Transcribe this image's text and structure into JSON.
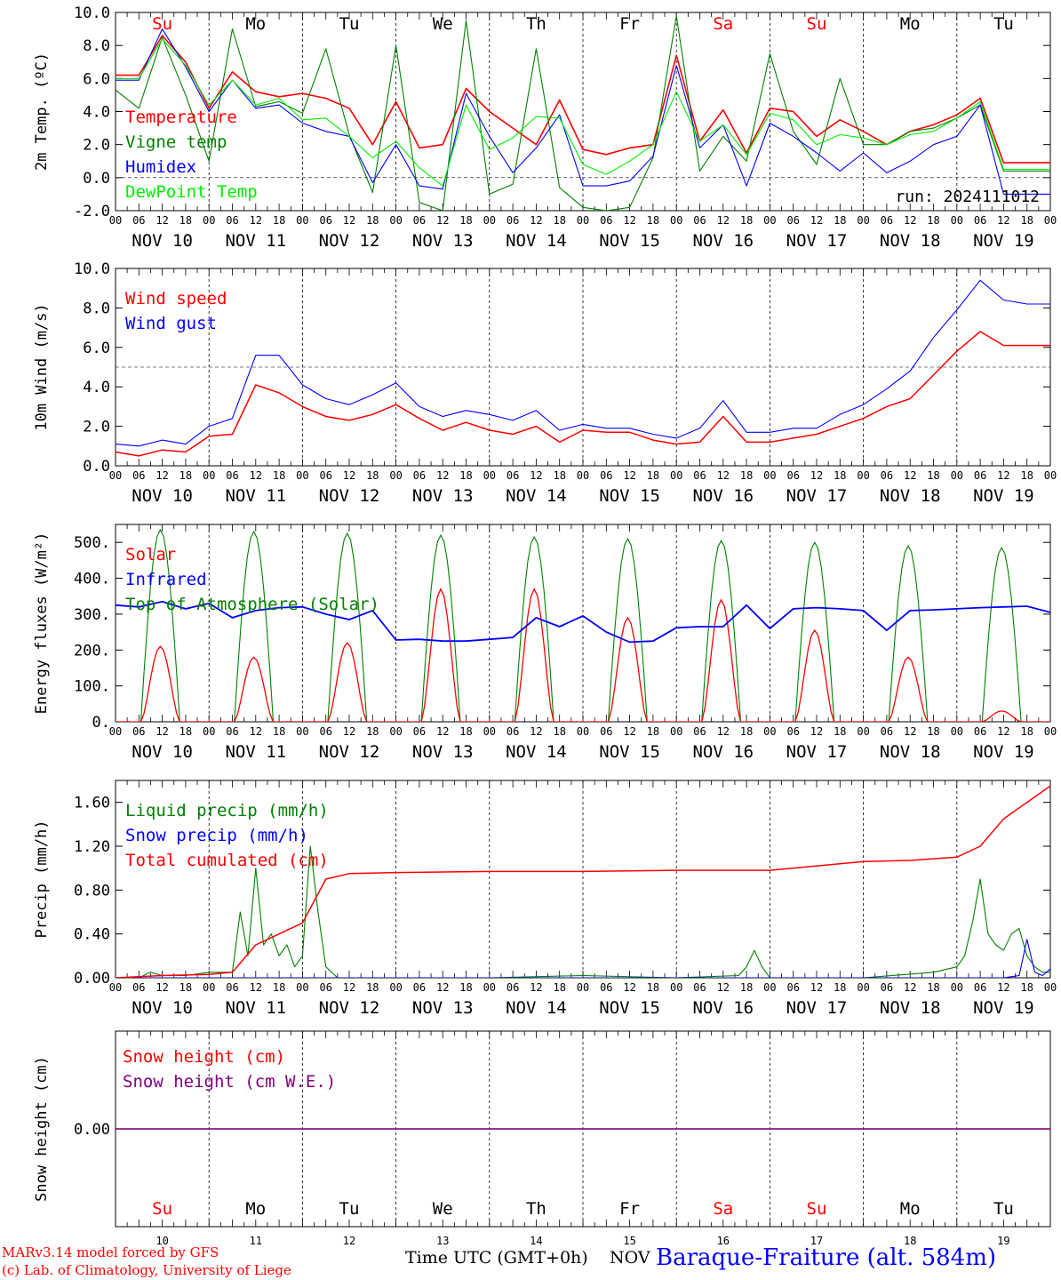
{
  "run_label": "run: 2024111012",
  "days": {
    "dates": [
      "NOV 10",
      "NOV 11",
      "NOV 12",
      "NOV 13",
      "NOV 14",
      "NOV 15",
      "NOV 16",
      "NOV 17",
      "NOV 18",
      "NOV 19"
    ],
    "weekdays": [
      "Su",
      "Mo",
      "Tu",
      "We",
      "Th",
      "Fr",
      "Sa",
      "Su",
      "Mo",
      "Tu"
    ],
    "weekday_colors": [
      "#ff0000",
      "#000000",
      "#000000",
      "#000000",
      "#000000",
      "#000000",
      "#ff0000",
      "#ff0000",
      "#000000",
      "#000000"
    ],
    "day_numbers": [
      "10",
      "11",
      "12",
      "13",
      "14",
      "15",
      "16",
      "17",
      "18",
      "19"
    ],
    "hour_ticks": [
      "00",
      "06",
      "12",
      "18"
    ],
    "hour_end": "00"
  },
  "footer": {
    "credit_line1": "MARv3.14 model forced by GFS",
    "credit_line2": "(c) Lab. of Climatology, University of Liege",
    "time_label": "Time UTC (GMT+0h)",
    "month_label": "NOV",
    "station": "Baraque-Fraiture (alt. 584m)"
  },
  "chart_data": [
    {
      "id": "temp",
      "type": "line",
      "ylabel": "2m Temp. (ºC)",
      "ylim": [
        -2,
        10
      ],
      "yticks": [
        "-2.0",
        "0.0",
        "2.0",
        "4.0",
        "6.0",
        "8.0",
        "10.0"
      ],
      "ytick_values": [
        -2,
        0,
        2,
        4,
        6,
        8,
        10
      ],
      "reference_line": 0,
      "x_hours": [
        0,
        6,
        12,
        18,
        24,
        30,
        36,
        42,
        48,
        54,
        60,
        66,
        72,
        78,
        84,
        90,
        96,
        102,
        108,
        114,
        120,
        126,
        132,
        138,
        144,
        150,
        156,
        162,
        168,
        174,
        180,
        186,
        192,
        198,
        204,
        210,
        216,
        222,
        228,
        234,
        240
      ],
      "series": [
        {
          "name": "Temperature",
          "color": "#ff0000",
          "width": 1.6,
          "values": [
            6.2,
            6.2,
            8.6,
            7.0,
            4.2,
            6.4,
            5.2,
            4.9,
            5.1,
            4.8,
            4.2,
            2.0,
            4.6,
            1.8,
            2.0,
            5.4,
            4.0,
            3.0,
            2.0,
            4.7,
            1.7,
            1.4,
            1.8,
            2.0,
            7.4,
            2.2,
            4.1,
            1.5,
            4.2,
            4.0,
            2.5,
            3.5,
            2.8,
            2.0,
            2.8,
            3.2,
            3.8,
            4.8,
            0.9,
            0.9,
            0.9
          ]
        },
        {
          "name": "Vigne temp",
          "color": "#008000",
          "width": 1.1,
          "values": [
            5.3,
            4.2,
            8.5,
            5.0,
            1.0,
            9.0,
            4.3,
            4.6,
            3.9,
            7.8,
            2.6,
            -0.9,
            8.0,
            -1.5,
            -2.0,
            9.5,
            -1.0,
            -0.4,
            7.8,
            -0.6,
            -1.8,
            -2.0,
            -1.8,
            1.2,
            9.8,
            0.4,
            2.5,
            1.0,
            7.5,
            2.8,
            0.8,
            6.0,
            2.0,
            2.0,
            2.8,
            3.0,
            3.6,
            4.4,
            0.4,
            0.4,
            0.4
          ]
        },
        {
          "name": "Humidex",
          "color": "#0000ff",
          "width": 1.1,
          "values": [
            5.9,
            5.9,
            9.0,
            6.7,
            4.0,
            5.9,
            4.2,
            4.4,
            3.3,
            2.8,
            2.5,
            -0.3,
            2.0,
            -0.5,
            -0.7,
            5.1,
            2.5,
            0.3,
            1.8,
            3.8,
            -0.5,
            -0.5,
            -0.2,
            1.3,
            6.8,
            1.8,
            3.2,
            -0.5,
            3.3,
            2.5,
            1.5,
            0.4,
            1.5,
            0.3,
            1.0,
            2.0,
            2.5,
            4.4,
            -1.0,
            -1.0,
            -1.0
          ]
        },
        {
          "name": "DewPoint Temp",
          "color": "#00ee00",
          "width": 1.1,
          "values": [
            6.0,
            6.0,
            8.4,
            6.8,
            4.4,
            5.9,
            4.4,
            4.8,
            3.5,
            3.6,
            2.5,
            1.2,
            2.2,
            0.6,
            -0.5,
            4.4,
            1.7,
            2.4,
            3.7,
            3.6,
            0.8,
            0.2,
            1.0,
            2.0,
            5.2,
            2.2,
            3.2,
            1.4,
            3.9,
            3.5,
            2.0,
            2.6,
            2.4,
            2.0,
            2.6,
            2.8,
            3.6,
            4.6,
            0.5,
            0.5,
            0.5
          ]
        }
      ]
    },
    {
      "id": "wind",
      "type": "line",
      "ylabel": "10m Wind (m/s)",
      "ylim": [
        0,
        10
      ],
      "yticks": [
        "0.0",
        "2.0",
        "4.0",
        "6.0",
        "8.0",
        "10.0"
      ],
      "ytick_values": [
        0,
        2,
        4,
        6,
        8,
        10
      ],
      "reference_line": 5,
      "x_hours": [
        0,
        6,
        12,
        18,
        24,
        30,
        36,
        42,
        48,
        54,
        60,
        66,
        72,
        78,
        84,
        90,
        96,
        102,
        108,
        114,
        120,
        126,
        132,
        138,
        144,
        150,
        156,
        162,
        168,
        174,
        180,
        186,
        192,
        198,
        204,
        210,
        216,
        222,
        228,
        234,
        240
      ],
      "series": [
        {
          "name": "Wind speed",
          "color": "#ff0000",
          "width": 1.5,
          "values": [
            0.7,
            0.5,
            0.8,
            0.7,
            1.5,
            1.6,
            4.1,
            3.7,
            3.0,
            2.5,
            2.3,
            2.6,
            3.1,
            2.4,
            1.8,
            2.2,
            1.8,
            1.6,
            2.0,
            1.2,
            1.8,
            1.7,
            1.7,
            1.3,
            1.1,
            1.2,
            2.5,
            1.2,
            1.2,
            1.4,
            1.6,
            2.0,
            2.4,
            3.0,
            3.4,
            4.6,
            5.8,
            6.8,
            6.1,
            6.1,
            6.1
          ]
        },
        {
          "name": "Wind gust",
          "color": "#0000ff",
          "width": 1.1,
          "values": [
            1.1,
            1.0,
            1.3,
            1.1,
            2.0,
            2.4,
            5.6,
            5.6,
            4.1,
            3.4,
            3.1,
            3.6,
            4.2,
            3.0,
            2.5,
            2.8,
            2.6,
            2.3,
            2.8,
            1.8,
            2.1,
            1.9,
            1.9,
            1.6,
            1.4,
            1.9,
            3.3,
            1.7,
            1.7,
            1.9,
            1.9,
            2.6,
            3.1,
            3.9,
            4.8,
            6.5,
            7.9,
            9.4,
            8.4,
            8.2,
            8.2
          ]
        }
      ]
    },
    {
      "id": "energy",
      "type": "line",
      "ylabel": "Energy fluxes (W/m²)",
      "ylim": [
        0,
        550
      ],
      "yticks": [
        "0.",
        "100.",
        "200.",
        "300.",
        "400.",
        "500."
      ],
      "ytick_values": [
        0,
        100,
        200,
        300,
        400,
        500
      ],
      "reference_line": null,
      "diurnal": {
        "sunrise_hour": 6.5,
        "sunset_hour": 16.5,
        "toa_peaks": [
          535,
          530,
          525,
          520,
          515,
          510,
          505,
          500,
          490,
          485
        ],
        "solar_peaks": [
          210,
          180,
          220,
          370,
          370,
          290,
          340,
          255,
          180,
          30
        ]
      },
      "infrared_x_hours": [
        0,
        6,
        12,
        18,
        24,
        30,
        36,
        42,
        48,
        54,
        60,
        66,
        72,
        78,
        84,
        90,
        96,
        102,
        108,
        114,
        120,
        126,
        132,
        138,
        144,
        150,
        156,
        162,
        168,
        174,
        180,
        186,
        192,
        198,
        204,
        210,
        216,
        222,
        228,
        234,
        240
      ],
      "infrared_values": [
        325,
        320,
        335,
        315,
        330,
        290,
        310,
        318,
        320,
        300,
        285,
        310,
        228,
        230,
        225,
        225,
        230,
        235,
        290,
        265,
        295,
        250,
        222,
        225,
        262,
        265,
        265,
        325,
        260,
        315,
        318,
        315,
        310,
        255,
        310,
        312,
        315,
        318,
        320,
        322,
        305
      ],
      "series": [
        {
          "name": "Solar",
          "color": "#ff0000",
          "width": 1.3
        },
        {
          "name": "Infrared",
          "color": "#0000ff",
          "width": 1.8
        },
        {
          "name": "Top of Atmosphere (Solar)",
          "color": "#008000",
          "width": 1.1
        }
      ]
    },
    {
      "id": "precip",
      "type": "line",
      "ylabel": "Precip (mm/h)",
      "ylim": [
        0,
        1.8
      ],
      "yticks": [
        "0.00",
        "0.40",
        "0.80",
        "1.20",
        "1.60"
      ],
      "ytick_values": [
        0,
        0.4,
        0.8,
        1.2,
        1.6
      ],
      "reference_line": null,
      "series": [
        {
          "name": "Liquid precip (mm/h)",
          "color": "#008000",
          "width": 1.1,
          "x_hours": [
            0,
            6,
            9,
            12,
            18,
            24,
            30,
            32,
            34,
            36,
            38,
            40,
            42,
            44,
            46,
            48,
            50,
            52,
            54,
            57,
            60,
            96,
            120,
            144,
            160,
            162,
            164,
            166,
            168,
            192,
            210,
            216,
            218,
            220,
            222,
            224,
            226,
            228,
            230,
            232,
            234,
            236,
            238,
            240
          ],
          "values": [
            0,
            0,
            0.05,
            0.02,
            0.02,
            0.05,
            0.05,
            0.6,
            0.2,
            1.0,
            0.3,
            0.4,
            0.2,
            0.3,
            0.1,
            0.2,
            1.2,
            0.6,
            0.1,
            0,
            0,
            0,
            0.02,
            0,
            0.02,
            0.1,
            0.25,
            0.1,
            0,
            0,
            0.05,
            0.1,
            0.2,
            0.5,
            0.9,
            0.4,
            0.3,
            0.25,
            0.4,
            0.45,
            0.2,
            0.1,
            0.05,
            0.05
          ]
        },
        {
          "name": "Snow precip (mm/h)",
          "color": "#0000ff",
          "width": 1.1,
          "x_hours": [
            0,
            60,
            120,
            180,
            228,
            232,
            234,
            236,
            238,
            240
          ],
          "values": [
            0,
            0,
            0,
            0,
            0,
            0.02,
            0.35,
            0.05,
            0.02,
            0.08
          ]
        },
        {
          "name": "Total cumulated (cm)",
          "color": "#ff0000",
          "width": 1.5,
          "x_hours": [
            0,
            12,
            24,
            30,
            36,
            42,
            48,
            54,
            60,
            72,
            96,
            120,
            144,
            168,
            192,
            204,
            216,
            222,
            228,
            234,
            240
          ],
          "values": [
            0,
            0.02,
            0.03,
            0.05,
            0.3,
            0.4,
            0.5,
            0.9,
            0.95,
            0.96,
            0.97,
            0.97,
            0.98,
            0.98,
            1.06,
            1.07,
            1.1,
            1.2,
            1.45,
            1.6,
            1.75
          ]
        }
      ]
    },
    {
      "id": "snow",
      "type": "line",
      "ylabel": "Snow height (cm)",
      "ylim": [
        -1,
        1
      ],
      "yticks": [
        "0.00"
      ],
      "ytick_values": [
        0
      ],
      "reference_line": null,
      "series": [
        {
          "name": "Snow height (cm)",
          "color": "#ff0000",
          "width": 1.2,
          "x_hours": [
            0,
            240
          ],
          "values": [
            0,
            0
          ]
        },
        {
          "name": "Snow height (cm W.E.)",
          "color": "#800080",
          "width": 1.4,
          "x_hours": [
            0,
            240
          ],
          "values": [
            0,
            0
          ]
        }
      ]
    }
  ]
}
